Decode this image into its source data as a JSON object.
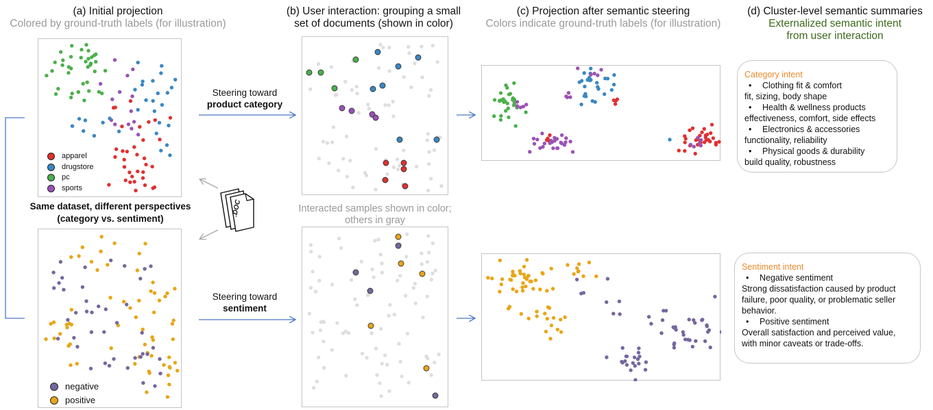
{
  "headers": {
    "a_title": "(a) Initial projection",
    "a_sub": "Colored by ground-truth labels (for illustration)",
    "b_title_1": "(b) User interaction: grouping a small",
    "b_title_2": "set of documents (shown in color)",
    "c_title": "(c) Projection after semantic steering",
    "c_sub": "Colors indicate ground-truth labels (for illustration)",
    "d_title": "(d) Cluster-level semantic summaries",
    "d_sub_1": "Externalized semantic intent",
    "d_sub_2": "from user interaction"
  },
  "center_label_1": "Same dataset, different perspectives",
  "center_label_2": "(category vs. sentiment)",
  "doc_icon_label": ".DOC",
  "interacted_note_1": "Interacted samples shown in color;",
  "interacted_note_2": "others in gray",
  "arrows": {
    "top_1": "Steering toward",
    "top_2": "product category",
    "bottom_1": "Steering toward",
    "bottom_2": "sentiment"
  },
  "colors": {
    "apparel": "#e03030",
    "drugstore": "#3a87c3",
    "pc": "#4bb04b",
    "sports": "#9b52b6",
    "negative": "#76679e",
    "positive": "#e9a516",
    "gray_point": "#dedede",
    "arrow": "#4a78c8",
    "accent_orange": "#e98a2b",
    "accent_green": "#3e6a1b"
  },
  "legend_category": [
    {
      "label": "apparel",
      "color": "#e03030"
    },
    {
      "label": "drugstore",
      "color": "#3a87c3"
    },
    {
      "label": "pc",
      "color": "#4bb04b"
    },
    {
      "label": "sports",
      "color": "#9b52b6"
    }
  ],
  "legend_sentiment": [
    {
      "label": "negative",
      "color": "#76679e"
    },
    {
      "label": "positive",
      "color": "#e9a516"
    }
  ],
  "category_box": {
    "title": "Category intent",
    "items": [
      {
        "head": "Clothing fit & comfort",
        "detail": "fit, sizing, body shape"
      },
      {
        "head": "Health & wellness products",
        "detail": "effectiveness, comfort, side effects"
      },
      {
        "head": "Electronics & accessories",
        "detail": "functionality, reliability"
      },
      {
        "head": "Physical goods & durability",
        "detail": "build quality, robustness"
      }
    ]
  },
  "sentiment_box": {
    "title": "Sentiment intent",
    "items": [
      {
        "head": "Negative sentiment",
        "detail_lines": [
          "Strong dissatisfaction caused by product",
          "failure, poor quality, or problematic seller",
          "behavior."
        ]
      },
      {
        "head": "Positive sentiment",
        "detail_lines": [
          "Overall satisfaction and perceived value,",
          "with minor caveats or trade-offs."
        ]
      }
    ]
  },
  "bullet": "•"
}
